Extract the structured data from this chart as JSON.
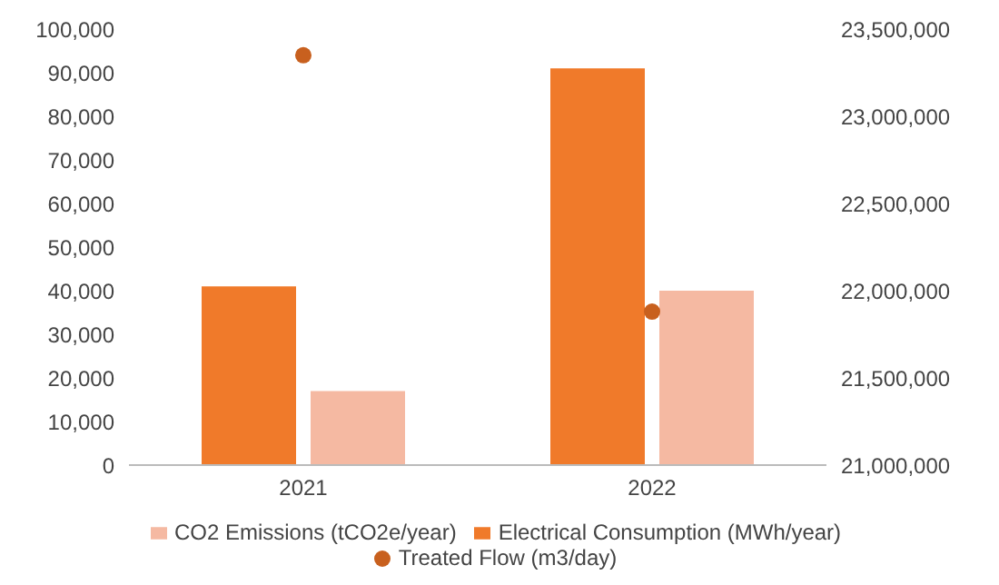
{
  "chart_data": {
    "type": "bar",
    "categories": [
      "2021",
      "2022"
    ],
    "series": [
      {
        "name": "Electrical Consumption (MWh/year)",
        "color": "#f07a2a",
        "values": [
          41000,
          91000
        ]
      },
      {
        "name": "CO2 Emissions (tCO2e/year)",
        "color": "#f5b9a2",
        "values": [
          17000,
          40000
        ]
      },
      {
        "name": "Treated Flow (m3/day)",
        "type": "scatter",
        "axis": "y2",
        "color": "#c8601e",
        "values": [
          23350000,
          21880000
        ]
      }
    ],
    "ylim": [
      0,
      100000
    ],
    "yticks": [
      {
        "value": 0,
        "label": "0"
      },
      {
        "value": 10000,
        "label": "10,000"
      },
      {
        "value": 20000,
        "label": "20,000"
      },
      {
        "value": 30000,
        "label": "30,000"
      },
      {
        "value": 40000,
        "label": "40,000"
      },
      {
        "value": 50000,
        "label": "50,000"
      },
      {
        "value": 60000,
        "label": "60,000"
      },
      {
        "value": 70000,
        "label": "70,000"
      },
      {
        "value": 80000,
        "label": "80,000"
      },
      {
        "value": 90000,
        "label": "90,000"
      },
      {
        "value": 100000,
        "label": "100,000"
      }
    ],
    "y2lim": [
      21000000,
      23500000
    ],
    "y2ticks": [
      {
        "value": 21000000,
        "label": "21,000,000"
      },
      {
        "value": 21500000,
        "label": "21,500,000"
      },
      {
        "value": 22000000,
        "label": "22,000,000"
      },
      {
        "value": 22500000,
        "label": "22,500,000"
      },
      {
        "value": 23000000,
        "label": "23,000,000"
      },
      {
        "value": 23500000,
        "label": "23,500,000"
      }
    ],
    "marker": "circle",
    "legend": "bottom"
  }
}
